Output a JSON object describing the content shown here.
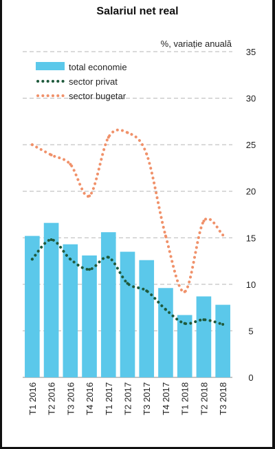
{
  "chart_data": {
    "type": "bar",
    "title": "Salariul net real",
    "unit_label": "%, variație anuală",
    "categories": [
      "T1 2016",
      "T2 2016",
      "T3 2016",
      "T4 2016",
      "T1 2017",
      "T2 2017",
      "T3 2017",
      "T4 2017",
      "T1 2018",
      "T2 2018",
      "T3 2018"
    ],
    "series": [
      {
        "name": "total economie",
        "kind": "bar",
        "color": "#5bc8ea",
        "values": [
          15.2,
          16.6,
          14.3,
          13.1,
          15.6,
          13.5,
          12.6,
          9.6,
          6.7,
          8.7,
          7.8
        ]
      },
      {
        "name": "sector privat",
        "kind": "dotted-line",
        "color": "#1f5a3c",
        "values": [
          12.7,
          14.8,
          12.7,
          11.6,
          12.9,
          10.1,
          9.3,
          7.3,
          5.8,
          6.2,
          5.7
        ]
      },
      {
        "name": "sector bugetar",
        "kind": "dotted-line",
        "color": "#f0916a",
        "values": [
          25.0,
          23.9,
          22.9,
          19.5,
          25.8,
          26.3,
          24.0,
          15.2,
          9.2,
          16.8,
          15.3
        ]
      }
    ],
    "ylim": [
      0,
      35
    ],
    "yticks": [
      0,
      5,
      10,
      15,
      20,
      25,
      30,
      35
    ],
    "y_axis_side": "right",
    "grid": "dashed horizontal",
    "legend_position": "top-left"
  }
}
